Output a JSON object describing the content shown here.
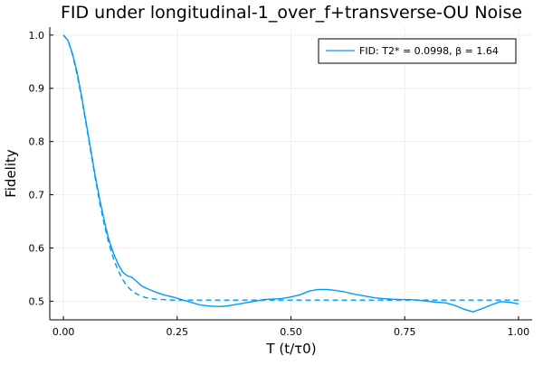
{
  "chart_data": {
    "type": "line",
    "title": "FID under longitudinal-1_over_f+transverse-OU Noise",
    "xlabel": "T (t/τ0)",
    "ylabel": "Fidelity",
    "xlim": [
      -0.03,
      1.03
    ],
    "ylim": [
      0.465,
      1.015
    ],
    "x_ticks": [
      0.0,
      0.25,
      0.5,
      0.75,
      1.0
    ],
    "x_tick_labels": [
      "0.00",
      "0.25",
      "0.50",
      "0.75",
      "1.00"
    ],
    "y_ticks": [
      0.5,
      0.6,
      0.7,
      0.8,
      0.9,
      1.0
    ],
    "y_tick_labels": [
      "0.5",
      "0.6",
      "0.7",
      "0.8",
      "0.9",
      "1.0"
    ],
    "grid": true,
    "legend_position": "top-right",
    "legend_label": "FID: T2* = 0.0998, β = 1.64",
    "colors": {
      "series": "#009af9",
      "grid": "#eeeeee",
      "axis": "#000000"
    },
    "series": [
      {
        "name": "FID: T2* = 0.0998, β = 1.64",
        "style": "solid",
        "x": [
          0.0,
          0.01,
          0.02,
          0.03,
          0.04,
          0.05,
          0.06,
          0.07,
          0.08,
          0.09,
          0.1,
          0.11,
          0.12,
          0.13,
          0.14,
          0.15,
          0.16,
          0.17,
          0.18,
          0.2,
          0.22,
          0.24,
          0.26,
          0.28,
          0.3,
          0.32,
          0.34,
          0.36,
          0.38,
          0.4,
          0.42,
          0.44,
          0.46,
          0.48,
          0.5,
          0.52,
          0.54,
          0.56,
          0.58,
          0.6,
          0.62,
          0.64,
          0.66,
          0.68,
          0.7,
          0.72,
          0.74,
          0.76,
          0.78,
          0.8,
          0.82,
          0.84,
          0.86,
          0.88,
          0.9,
          0.92,
          0.94,
          0.96,
          0.98,
          1.0
        ],
        "y": [
          1.0,
          0.99,
          0.965,
          0.93,
          0.885,
          0.835,
          0.785,
          0.735,
          0.69,
          0.65,
          0.615,
          0.59,
          0.57,
          0.555,
          0.548,
          0.545,
          0.538,
          0.53,
          0.525,
          0.518,
          0.512,
          0.508,
          0.503,
          0.498,
          0.493,
          0.491,
          0.49,
          0.491,
          0.494,
          0.497,
          0.5,
          0.503,
          0.504,
          0.505,
          0.508,
          0.512,
          0.519,
          0.522,
          0.522,
          0.52,
          0.517,
          0.513,
          0.51,
          0.507,
          0.505,
          0.504,
          0.503,
          0.503,
          0.502,
          0.5,
          0.498,
          0.497,
          0.492,
          0.485,
          0.48,
          0.486,
          0.493,
          0.499,
          0.498,
          0.495
        ]
      },
      {
        "name": "",
        "style": "dashed",
        "x": [
          0.0,
          0.01,
          0.02,
          0.03,
          0.04,
          0.05,
          0.06,
          0.07,
          0.08,
          0.09,
          0.1,
          0.11,
          0.12,
          0.13,
          0.14,
          0.15,
          0.16,
          0.17,
          0.18,
          0.2,
          0.22,
          0.24,
          0.26,
          0.28,
          0.3,
          0.35,
          0.4,
          0.5,
          0.6,
          0.7,
          0.8,
          0.9,
          1.0
        ],
        "y": [
          1.0,
          0.99,
          0.963,
          0.926,
          0.881,
          0.832,
          0.781,
          0.731,
          0.684,
          0.643,
          0.608,
          0.58,
          0.558,
          0.541,
          0.528,
          0.52,
          0.514,
          0.51,
          0.507,
          0.504,
          0.503,
          0.502,
          0.502,
          0.502,
          0.502,
          0.502,
          0.502,
          0.502,
          0.502,
          0.502,
          0.502,
          0.502,
          0.502
        ]
      }
    ]
  }
}
